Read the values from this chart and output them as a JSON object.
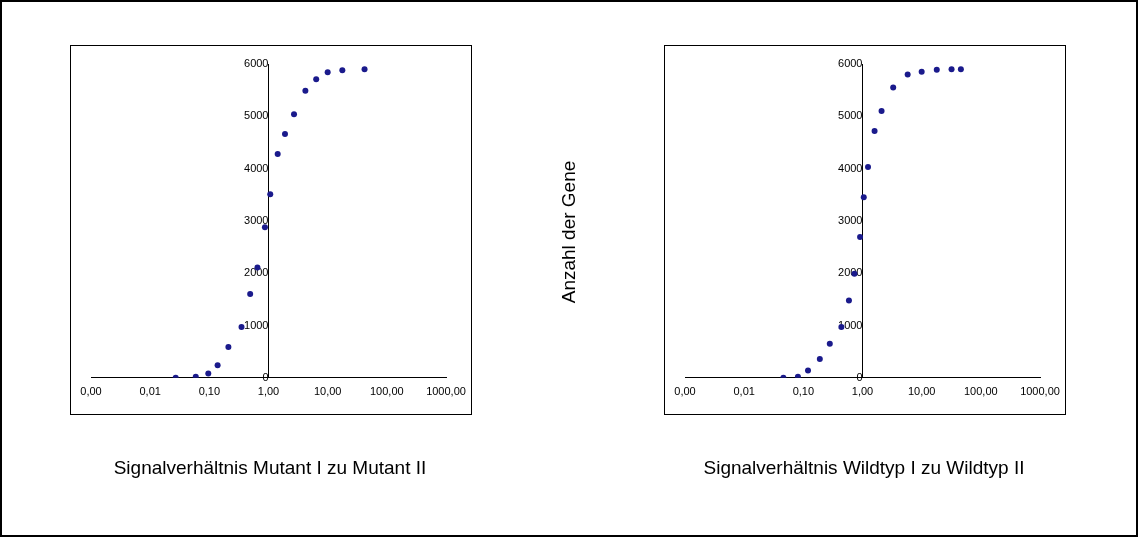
{
  "chart_data": [
    {
      "type": "scatter",
      "xlabel": "Signalverhältnis Mutant I zu Mutant II",
      "log": "x",
      "marker": "circle",
      "grid": false,
      "legend": false,
      "xlim": [
        0.001,
        1000
      ],
      "xticks": [
        {
          "value": 0.001,
          "label": "0,00"
        },
        {
          "value": 0.01,
          "label": "0,01"
        },
        {
          "value": 0.1,
          "label": "0,10"
        },
        {
          "value": 1,
          "label": "1,00"
        },
        {
          "value": 10,
          "label": "10,00"
        },
        {
          "value": 100,
          "label": "100,00"
        },
        {
          "value": 1000,
          "label": "1000,00"
        }
      ],
      "ylim": [
        0,
        6000
      ],
      "yticks": [
        0,
        1000,
        2000,
        3000,
        4000,
        5000,
        6000
      ],
      "series": [
        {
          "color": "#1a1a8c",
          "x": [
            0.027,
            0.059,
            0.096,
            0.138,
            0.21,
            0.35,
            0.49,
            0.65,
            0.87,
            1.07,
            1.43,
            1.9,
            2.7,
            4.2,
            6.4,
            10,
            17.7,
            42
          ],
          "values": [
            0,
            20,
            80,
            240,
            590,
            970,
            1600,
            2110,
            2880,
            3510,
            4280,
            4660,
            5040,
            5490,
            5710,
            5840,
            5880,
            5900
          ]
        }
      ]
    },
    {
      "type": "scatter",
      "xlabel": "Signalverhältnis Wildtyp I zu Wildtyp II",
      "ylabel": "Anzahl der Gene",
      "log": "x",
      "marker": "circle",
      "grid": false,
      "legend": false,
      "xlim": [
        0.001,
        1000
      ],
      "xticks": [
        {
          "value": 0.001,
          "label": "0,00"
        },
        {
          "value": 0.01,
          "label": "0,01"
        },
        {
          "value": 0.1,
          "label": "0,10"
        },
        {
          "value": 1,
          "label": "1,00"
        },
        {
          "value": 10,
          "label": "10,00"
        },
        {
          "value": 100,
          "label": "100,00"
        },
        {
          "value": 1000,
          "label": "1000,00"
        }
      ],
      "ylim": [
        0,
        6000
      ],
      "yticks": [
        0,
        1000,
        2000,
        3000,
        4000,
        5000,
        6000
      ],
      "series": [
        {
          "color": "#1a1a8c",
          "x": [
            0.046,
            0.081,
            0.12,
            0.19,
            0.28,
            0.44,
            0.59,
            0.73,
            0.91,
            1.05,
            1.24,
            1.6,
            2.1,
            3.3,
            5.8,
            10,
            18,
            32,
            46
          ],
          "values": [
            0,
            20,
            140,
            360,
            650,
            970,
            1480,
            1990,
            2690,
            3450,
            4030,
            4720,
            5100,
            5550,
            5800,
            5850,
            5890,
            5900,
            5900
          ]
        }
      ]
    }
  ]
}
